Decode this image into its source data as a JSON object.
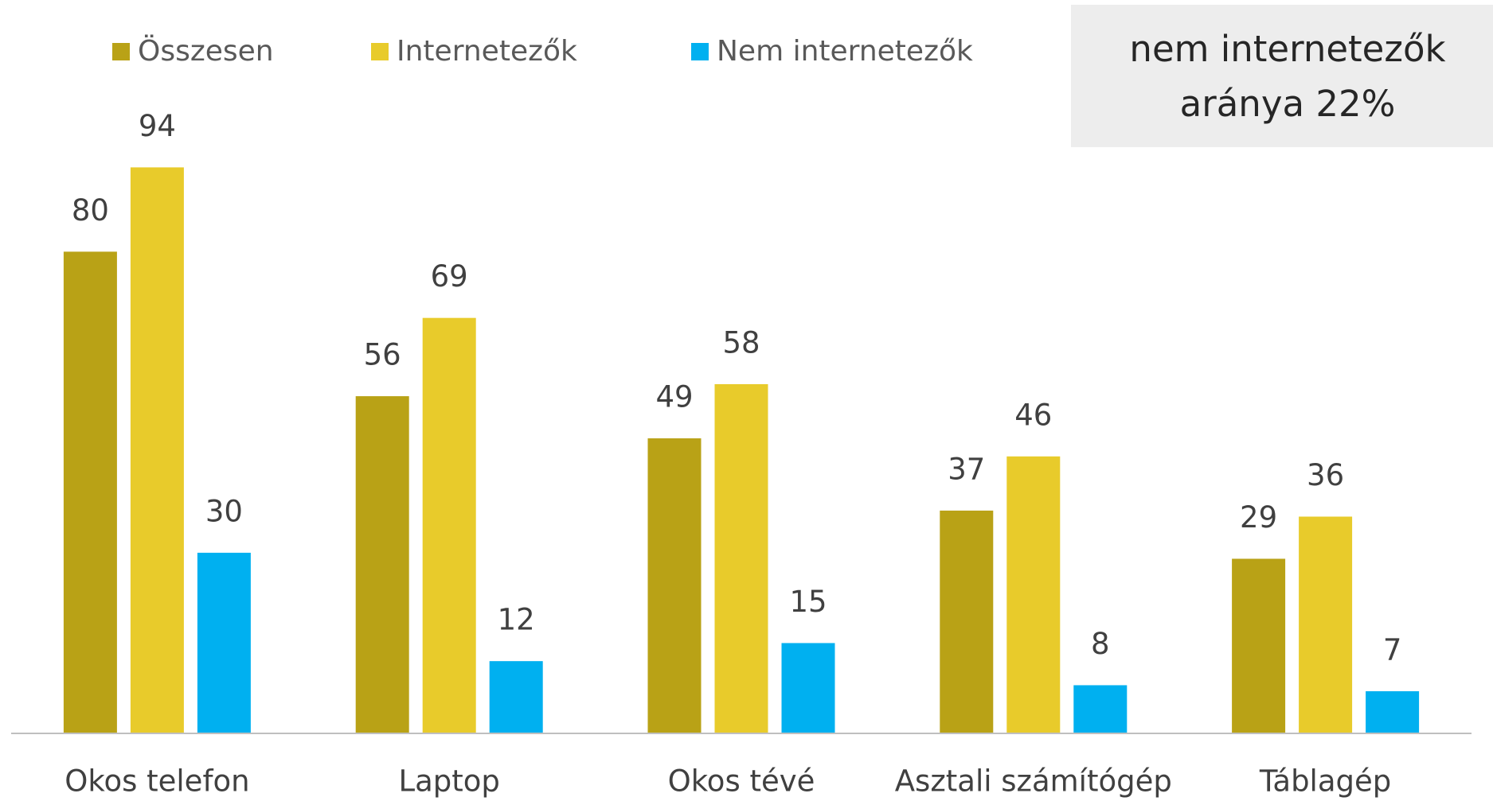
{
  "chart_data": {
    "type": "bar",
    "categories": [
      "Okos telefon",
      "Laptop",
      "Okos tévé",
      "Asztali számítógép",
      "Táblagép"
    ],
    "series": [
      {
        "name": "Összesen",
        "color": "#b9a216",
        "values": [
          80,
          56,
          49,
          37,
          29
        ]
      },
      {
        "name": "Internetezők",
        "color": "#e8cb2b",
        "values": [
          94,
          69,
          58,
          46,
          36
        ]
      },
      {
        "name": "Nem internetezők",
        "color": "#00b0f0",
        "values": [
          30,
          12,
          15,
          8,
          7
        ]
      }
    ],
    "ylim": [
      0,
      100
    ],
    "legend": "top-left",
    "annotation": [
      "nem internetezők",
      "aránya 22%"
    ]
  }
}
